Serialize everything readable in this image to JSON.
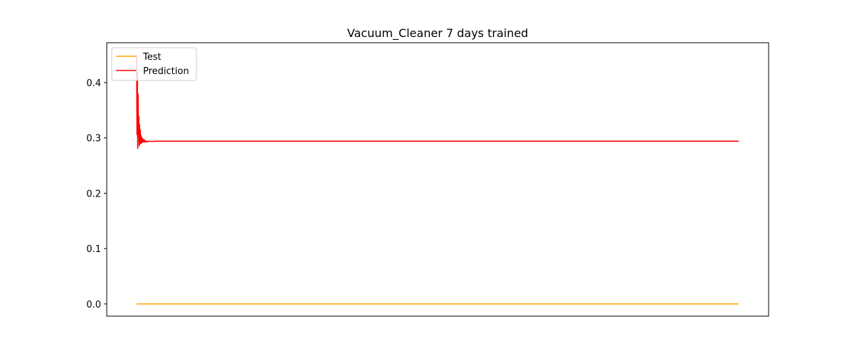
{
  "chart_data": {
    "type": "line",
    "title": "Vacuum_Cleaner 7 days trained",
    "xlabel": "",
    "ylabel": "",
    "ylim": [
      -0.022,
      0.472
    ],
    "yticks": [
      0.0,
      0.1,
      0.2,
      0.3,
      0.4
    ],
    "ytick_labels": [
      "0.0",
      "0.1",
      "0.2",
      "0.3",
      "0.4"
    ],
    "x_ticks_visible": false,
    "grid": false,
    "legend_position": "top-left",
    "series": [
      {
        "name": "Test",
        "color": "#ffa500",
        "description": "flat line at 0.0",
        "x": [
          0,
          1
        ],
        "values": [
          0.0,
          0.0
        ]
      },
      {
        "name": "Prediction",
        "color": "#ff0000",
        "x": [
          0.0,
          0.0006,
          0.0012,
          0.0018,
          0.0024,
          0.003,
          0.0036,
          0.0042,
          0.0048,
          0.0054,
          0.006,
          0.0066,
          0.0072,
          0.0078,
          0.0084,
          0.009,
          0.0096,
          0.0102,
          0.0108,
          0.0114,
          0.012,
          0.013,
          0.014,
          0.015,
          0.016,
          0.017,
          0.018,
          0.02,
          0.022,
          0.025,
          0.03,
          0.04,
          0.06,
          0.1,
          0.2,
          0.4,
          0.6,
          0.8,
          1.0
        ],
        "values": [
          0.45,
          0.305,
          0.42,
          0.28,
          0.38,
          0.3,
          0.34,
          0.285,
          0.325,
          0.288,
          0.315,
          0.289,
          0.305,
          0.29,
          0.302,
          0.291,
          0.299,
          0.292,
          0.297,
          0.292,
          0.296,
          0.293,
          0.295,
          0.293,
          0.294,
          0.293,
          0.294,
          0.2935,
          0.294,
          0.2935,
          0.294,
          0.294,
          0.294,
          0.294,
          0.294,
          0.294,
          0.294,
          0.294,
          0.294
        ]
      }
    ]
  }
}
